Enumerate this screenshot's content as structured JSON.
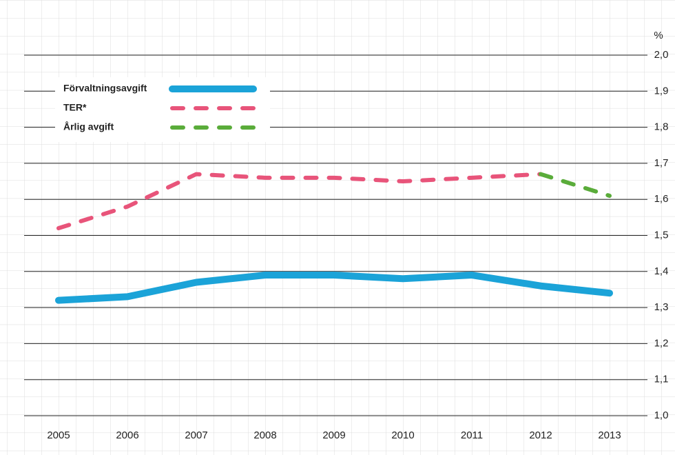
{
  "chart_data": {
    "type": "line",
    "y_unit": "%",
    "categories": [
      "2005",
      "2006",
      "2007",
      "2008",
      "2009",
      "2010",
      "2011",
      "2012",
      "2013"
    ],
    "series": [
      {
        "name": "Förvaltningsavgift",
        "color": "#1ba3d8",
        "dashed": false,
        "values": [
          1.32,
          1.33,
          1.37,
          1.39,
          1.39,
          1.38,
          1.39,
          1.36,
          1.34
        ]
      },
      {
        "name": "TER*",
        "color": "#e8547a",
        "dashed": true,
        "values": [
          1.52,
          1.58,
          1.67,
          1.66,
          1.66,
          1.65,
          1.66,
          1.67,
          null
        ]
      },
      {
        "name": "Årlig avgift",
        "color": "#5aac3a",
        "dashed": true,
        "values": [
          null,
          null,
          null,
          null,
          null,
          null,
          null,
          1.67,
          1.61
        ]
      }
    ],
    "ylim": [
      1.0,
      2.0
    ],
    "yticks": [
      {
        "value": 1.0,
        "label": "1,0"
      },
      {
        "value": 1.1,
        "label": "1,1"
      },
      {
        "value": 1.2,
        "label": "1,2"
      },
      {
        "value": 1.3,
        "label": "1,3"
      },
      {
        "value": 1.4,
        "label": "1,4"
      },
      {
        "value": 1.5,
        "label": "1,5"
      },
      {
        "value": 1.6,
        "label": "1,6"
      },
      {
        "value": 1.7,
        "label": "1,7"
      },
      {
        "value": 1.8,
        "label": "1,8"
      },
      {
        "value": 1.9,
        "label": "1,9"
      },
      {
        "value": 2.0,
        "label": "2,0"
      }
    ],
    "grid": true,
    "legend": "top-left"
  }
}
